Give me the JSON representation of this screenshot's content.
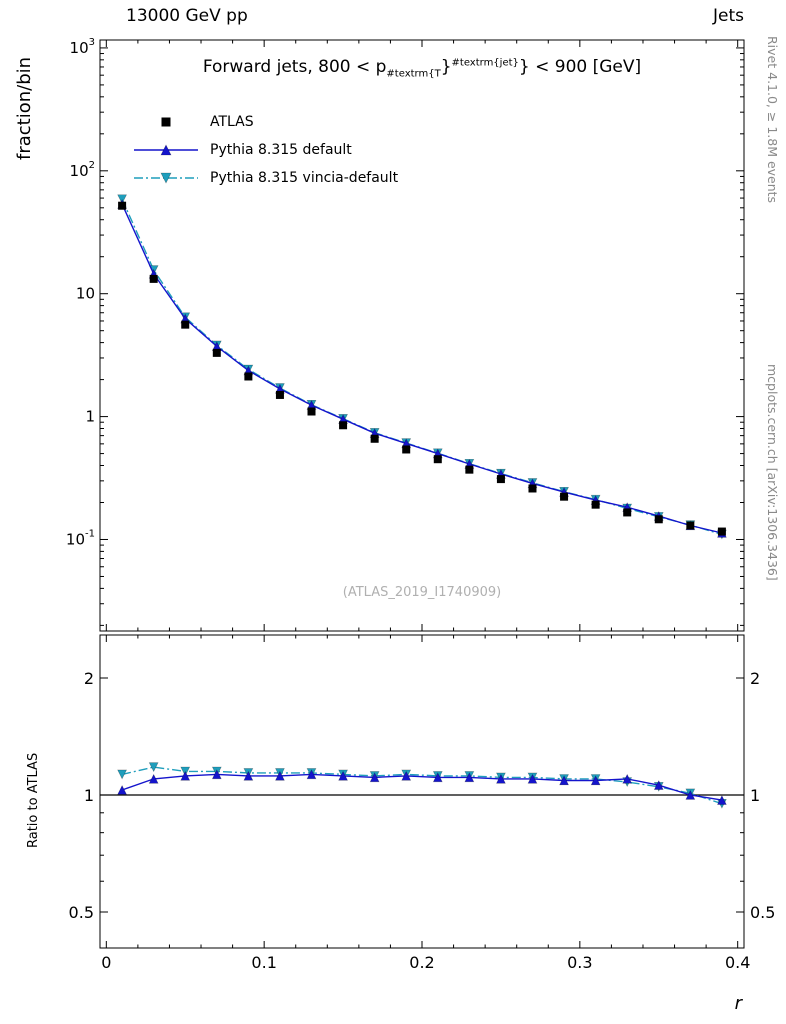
{
  "colors": {
    "atlas": "#000000",
    "pythia_default": "#1414cc",
    "pythia_vincia": "#1f9ebc",
    "frame": "#000000",
    "watermark_gray": "#b0b0b0",
    "side_label_gray": "#8a8a8a"
  },
  "header": {
    "left": "13000 GeV pp",
    "right": "Jets"
  },
  "side_labels": {
    "top_right": "Rivet 4.1.0, ≥ 1.8M events",
    "bottom_right": "mcplots.cern.ch [arXiv:1306.3436]"
  },
  "main_panel": {
    "ylabel": "fraction/bin",
    "title_parts": {
      "prefix": "Forward jets, 800 < p",
      "sub": "#textrm{T",
      "mid": "}",
      "sup": "#textrm{jet}",
      "suffix": "} < 900 [GeV]"
    },
    "watermark": "(ATLAS_2019_I1740909)"
  },
  "ratio_panel": {
    "ylabel": "Ratio to ATLAS"
  },
  "xaxis": {
    "label": "r"
  },
  "legend": [
    {
      "label": "ATLAS",
      "marker": "square",
      "line": "none",
      "color_key": "atlas"
    },
    {
      "label": "Pythia 8.315 default",
      "marker": "triangle-up",
      "line": "solid",
      "color_key": "pythia_default"
    },
    {
      "label": "Pythia 8.315 vincia-default",
      "marker": "triangle-down",
      "line": "dashdot",
      "color_key": "pythia_vincia"
    }
  ],
  "chart_data": [
    {
      "type": "line",
      "panel": "main",
      "title": "Forward jets, 800 < pT^jet < 900 [GeV]",
      "xlabel": "r",
      "ylabel": "fraction/bin",
      "xscale": "linear",
      "yscale": "log",
      "xlim": [
        -0.004,
        0.404
      ],
      "ylim": [
        0.018,
        1160
      ],
      "x": [
        0.01,
        0.03,
        0.05,
        0.07,
        0.09,
        0.11,
        0.13,
        0.15,
        0.17,
        0.19,
        0.21,
        0.23,
        0.25,
        0.27,
        0.29,
        0.31,
        0.33,
        0.35,
        0.37,
        0.39
      ],
      "series": [
        {
          "name": "ATLAS",
          "values": [
            52,
            13.2,
            5.6,
            3.3,
            2.12,
            1.5,
            1.1,
            0.85,
            0.66,
            0.54,
            0.45,
            0.37,
            0.31,
            0.26,
            0.223,
            0.192,
            0.166,
            0.146,
            0.13,
            0.116
          ]
        },
        {
          "name": "Pythia 8.315 default",
          "values": [
            53.6,
            14.5,
            6.27,
            3.73,
            2.37,
            1.68,
            1.24,
            0.952,
            0.733,
            0.605,
            0.5,
            0.411,
            0.341,
            0.286,
            0.243,
            0.209,
            0.183,
            0.155,
            0.13,
            0.113
          ]
        },
        {
          "name": "Pythia 8.315 vincia-default",
          "values": [
            58.8,
            15.6,
            6.44,
            3.8,
            2.42,
            1.71,
            1.25,
            0.961,
            0.739,
            0.61,
            0.504,
            0.414,
            0.344,
            0.289,
            0.245,
            0.211,
            0.179,
            0.153,
            0.131,
            0.11
          ]
        }
      ],
      "yticks": [
        {
          "label": "10^3",
          "v": 1000
        },
        {
          "label": "10^2",
          "v": 100
        },
        {
          "label": "10",
          "v": 10
        },
        {
          "label": "1",
          "v": 1
        },
        {
          "label": "10^-1",
          "v": 0.1
        }
      ],
      "xticks": [
        {
          "label": "0",
          "v": 0
        },
        {
          "label": "0.1",
          "v": 0.1
        },
        {
          "label": "0.2",
          "v": 0.2
        },
        {
          "label": "0.3",
          "v": 0.3
        },
        {
          "label": "0.4",
          "v": 0.4
        }
      ],
      "legend_position": "top-left",
      "grid": false
    },
    {
      "type": "line",
      "panel": "ratio",
      "ylabel": "Ratio to ATLAS",
      "xscale": "linear",
      "yscale": "log",
      "xlim": [
        -0.004,
        0.404
      ],
      "ylim": [
        0.404,
        2.58
      ],
      "ref_line": 1,
      "x": [
        0.01,
        0.03,
        0.05,
        0.07,
        0.09,
        0.11,
        0.13,
        0.15,
        0.17,
        0.19,
        0.21,
        0.23,
        0.25,
        0.27,
        0.29,
        0.31,
        0.33,
        0.35,
        0.37,
        0.39
      ],
      "series": [
        {
          "name": "Pythia 8.315 default",
          "values": [
            1.03,
            1.1,
            1.12,
            1.13,
            1.12,
            1.12,
            1.13,
            1.12,
            1.11,
            1.12,
            1.11,
            1.11,
            1.1,
            1.1,
            1.09,
            1.09,
            1.1,
            1.06,
            1.0,
            0.97
          ]
        },
        {
          "name": "Pythia 8.315 vincia-default",
          "values": [
            1.13,
            1.18,
            1.15,
            1.15,
            1.14,
            1.14,
            1.14,
            1.13,
            1.12,
            1.13,
            1.12,
            1.12,
            1.11,
            1.11,
            1.1,
            1.1,
            1.08,
            1.05,
            1.01,
            0.95
          ]
        }
      ],
      "yticks": [
        {
          "label": "2",
          "v": 2
        },
        {
          "label": "1",
          "v": 1
        },
        {
          "label": "0.5",
          "v": 0.5
        }
      ],
      "xticks": [
        {
          "label": "0",
          "v": 0
        },
        {
          "label": "0.1",
          "v": 0.1
        },
        {
          "label": "0.2",
          "v": 0.2
        },
        {
          "label": "0.3",
          "v": 0.3
        },
        {
          "label": "0.4",
          "v": 0.4
        }
      ],
      "grid": false
    }
  ]
}
